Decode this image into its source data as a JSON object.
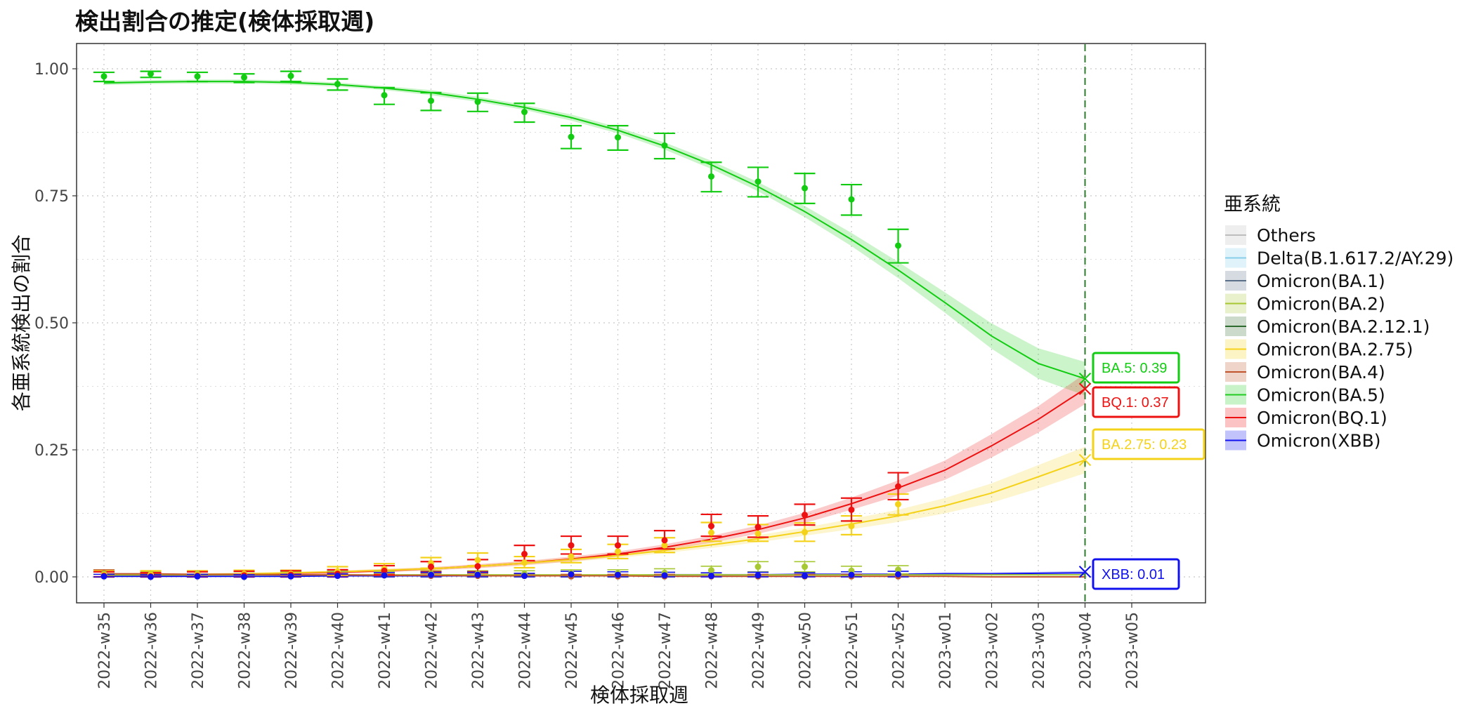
{
  "chart_data": {
    "type": "line",
    "title": "検出割合の推定(検体採取週)",
    "xlabel": "検体採取週",
    "ylabel": "各亜系統検出の割合",
    "ylim": [
      -0.05,
      1.05
    ],
    "y_ticks": [
      "1.00",
      "0.75",
      "0.50",
      "0.25",
      "0.00"
    ],
    "y_tick_values": [
      1.0,
      0.75,
      0.5,
      0.25,
      0.0
    ],
    "categories": [
      "2022-w35",
      "2022-w36",
      "2022-w37",
      "2022-w38",
      "2022-w39",
      "2022-w40",
      "2022-w41",
      "2022-w42",
      "2022-w43",
      "2022-w44",
      "2022-w45",
      "2022-w46",
      "2022-w47",
      "2022-w48",
      "2022-w49",
      "2022-w50",
      "2022-w51",
      "2022-w52",
      "2023-w01",
      "2023-w02",
      "2023-w03",
      "2023-w04",
      "2023-w05"
    ],
    "grid": true,
    "vline_at": "2023-w04",
    "legend": {
      "title": "亜系統",
      "placement": "right",
      "items": [
        {
          "label": "Others",
          "color": "#bdbdbd"
        },
        {
          "label": "Delta(B.1.617.2/AY.29)",
          "color": "#87ceeb"
        },
        {
          "label": "Omicron(BA.1)",
          "color": "#5a7088"
        },
        {
          "label": "Omicron(BA.2)",
          "color": "#a6c832"
        },
        {
          "label": "Omicron(BA.2.12.1)",
          "color": "#2e6b2e"
        },
        {
          "label": "Omicron(BA.2.75)",
          "color": "#f7d21a"
        },
        {
          "label": "Omicron(BA.4)",
          "color": "#c0552d"
        },
        {
          "label": "Omicron(BA.5)",
          "color": "#22cc22"
        },
        {
          "label": "Omicron(BQ.1)",
          "color": "#ee1111"
        },
        {
          "label": "Omicron(XBB)",
          "color": "#1111ee"
        }
      ]
    },
    "series": [
      {
        "name": "Omicron(BA.5)",
        "color": "#11cc11",
        "observed": [
          0.985,
          0.99,
          0.985,
          0.983,
          0.986,
          0.97,
          0.948,
          0.937,
          0.935,
          0.915,
          0.866,
          0.865,
          0.849,
          0.788,
          0.778,
          0.765,
          0.743,
          0.652
        ],
        "err_low": [
          0.975,
          0.983,
          0.975,
          0.973,
          0.975,
          0.958,
          0.93,
          0.918,
          0.916,
          0.895,
          0.843,
          0.84,
          0.823,
          0.758,
          0.748,
          0.735,
          0.712,
          0.618
        ],
        "err_high": [
          0.993,
          0.995,
          0.993,
          0.99,
          0.995,
          0.98,
          0.963,
          0.953,
          0.952,
          0.932,
          0.888,
          0.888,
          0.873,
          0.816,
          0.806,
          0.794,
          0.772,
          0.684
        ],
        "fitted": [
          0.972,
          0.974,
          0.975,
          0.975,
          0.973,
          0.969,
          0.962,
          0.953,
          0.94,
          0.924,
          0.904,
          0.879,
          0.848,
          0.811,
          0.768,
          0.719,
          0.664,
          0.604,
          0.54,
          0.474,
          0.42,
          0.39
        ],
        "band_width": [
          0.004,
          0.004,
          0.004,
          0.004,
          0.004,
          0.004,
          0.004,
          0.005,
          0.005,
          0.005,
          0.006,
          0.006,
          0.007,
          0.008,
          0.009,
          0.011,
          0.013,
          0.016,
          0.02,
          0.025,
          0.03,
          0.033
        ]
      },
      {
        "name": "Omicron(BQ.1)",
        "color": "#ee1111",
        "observed": [
          0.002,
          0.001,
          0.002,
          0.003,
          0.004,
          0.006,
          0.012,
          0.02,
          0.021,
          0.045,
          0.062,
          0.062,
          0.072,
          0.1,
          0.098,
          0.122,
          0.132,
          0.178
        ],
        "err_low": [
          0.0,
          0.0,
          0.0,
          0.0,
          0.0,
          0.0,
          0.004,
          0.01,
          0.01,
          0.032,
          0.045,
          0.045,
          0.055,
          0.08,
          0.078,
          0.102,
          0.11,
          0.152
        ],
        "err_high": [
          0.01,
          0.008,
          0.01,
          0.011,
          0.012,
          0.014,
          0.022,
          0.03,
          0.034,
          0.062,
          0.08,
          0.08,
          0.091,
          0.123,
          0.12,
          0.143,
          0.155,
          0.205
        ],
        "fitted": [
          0.003,
          0.003,
          0.004,
          0.005,
          0.007,
          0.009,
          0.012,
          0.016,
          0.021,
          0.027,
          0.035,
          0.045,
          0.058,
          0.074,
          0.093,
          0.116,
          0.144,
          0.175,
          0.21,
          0.258,
          0.31,
          0.37
        ],
        "band_width": [
          0.002,
          0.002,
          0.002,
          0.002,
          0.002,
          0.003,
          0.003,
          0.003,
          0.004,
          0.004,
          0.005,
          0.005,
          0.006,
          0.007,
          0.008,
          0.01,
          0.012,
          0.015,
          0.019,
          0.023,
          0.026,
          0.03
        ]
      },
      {
        "name": "Omicron(BA.2.75)",
        "color": "#f5d21a",
        "observed": [
          0.004,
          0.004,
          0.004,
          0.006,
          0.006,
          0.011,
          0.016,
          0.027,
          0.033,
          0.028,
          0.04,
          0.05,
          0.062,
          0.087,
          0.085,
          0.088,
          0.1,
          0.143
        ],
        "err_low": [
          0.0,
          0.0,
          0.0,
          0.0,
          0.0,
          0.002,
          0.006,
          0.017,
          0.022,
          0.018,
          0.028,
          0.036,
          0.048,
          0.07,
          0.07,
          0.07,
          0.083,
          0.122
        ],
        "err_high": [
          0.012,
          0.012,
          0.012,
          0.013,
          0.013,
          0.02,
          0.026,
          0.038,
          0.047,
          0.04,
          0.054,
          0.064,
          0.077,
          0.107,
          0.103,
          0.106,
          0.12,
          0.163
        ],
        "fitted": [
          0.003,
          0.004,
          0.005,
          0.006,
          0.008,
          0.01,
          0.013,
          0.016,
          0.021,
          0.027,
          0.034,
          0.042,
          0.052,
          0.063,
          0.075,
          0.089,
          0.104,
          0.12,
          0.14,
          0.165,
          0.197,
          0.23
        ],
        "band_width": [
          0.002,
          0.002,
          0.002,
          0.002,
          0.002,
          0.002,
          0.003,
          0.003,
          0.003,
          0.004,
          0.004,
          0.005,
          0.005,
          0.006,
          0.007,
          0.008,
          0.01,
          0.012,
          0.015,
          0.019,
          0.023,
          0.026
        ]
      },
      {
        "name": "Omicron(XBB)",
        "color": "#1111ee",
        "observed": [
          0.001,
          0.0,
          0.001,
          0.0,
          0.001,
          0.002,
          0.003,
          0.004,
          0.004,
          0.002,
          0.005,
          0.004,
          0.003,
          0.002,
          0.003,
          0.002,
          0.004,
          0.005
        ],
        "err_low": [
          0.0,
          0.0,
          0.0,
          0.0,
          0.0,
          0.0,
          0.0,
          0.0,
          0.0,
          0.0,
          0.0,
          0.0,
          0.0,
          0.0,
          0.0,
          0.0,
          0.0,
          0.0
        ],
        "err_high": [
          0.005,
          0.004,
          0.005,
          0.004,
          0.005,
          0.006,
          0.008,
          0.009,
          0.009,
          0.007,
          0.011,
          0.01,
          0.009,
          0.008,
          0.009,
          0.008,
          0.01,
          0.011
        ],
        "fitted": [
          0.001,
          0.001,
          0.001,
          0.001,
          0.001,
          0.002,
          0.002,
          0.002,
          0.002,
          0.003,
          0.003,
          0.003,
          0.004,
          0.004,
          0.004,
          0.005,
          0.005,
          0.005,
          0.006,
          0.006,
          0.007,
          0.008
        ],
        "band_width": [
          0.001,
          0.001,
          0.001,
          0.001,
          0.001,
          0.001,
          0.001,
          0.001,
          0.001,
          0.001,
          0.001,
          0.001,
          0.002,
          0.002,
          0.002,
          0.002,
          0.002,
          0.002,
          0.003,
          0.003,
          0.003,
          0.004
        ]
      },
      {
        "name": "Omicron(BA.2)",
        "color": "#a6c832",
        "observed": [
          0.006,
          0.005,
          0.006,
          0.004,
          0.004,
          0.005,
          0.005,
          0.006,
          0.006,
          0.006,
          0.007,
          0.007,
          0.008,
          0.013,
          0.02,
          0.02,
          0.012,
          0.014
        ],
        "err_low": [
          0.0,
          0.0,
          0.0,
          0.0,
          0.0,
          0.0,
          0.0,
          0.0,
          0.0,
          0.0,
          0.0,
          0.0,
          0.0,
          0.005,
          0.01,
          0.01,
          0.003,
          0.006
        ],
        "err_high": [
          0.012,
          0.011,
          0.012,
          0.01,
          0.01,
          0.011,
          0.011,
          0.012,
          0.012,
          0.012,
          0.014,
          0.014,
          0.016,
          0.021,
          0.03,
          0.03,
          0.021,
          0.022
        ],
        "fitted": [
          0.004,
          0.004,
          0.004,
          0.004,
          0.004,
          0.004,
          0.004,
          0.004,
          0.004,
          0.004,
          0.004,
          0.004,
          0.004,
          0.004,
          0.004,
          0.004,
          0.004,
          0.004,
          0.004,
          0.004,
          0.004,
          0.004
        ],
        "band_width": [
          0.001,
          0.001,
          0.001,
          0.001,
          0.001,
          0.001,
          0.001,
          0.001,
          0.001,
          0.001,
          0.001,
          0.001,
          0.001,
          0.001,
          0.001,
          0.001,
          0.001,
          0.001,
          0.001,
          0.001,
          0.001,
          0.001
        ]
      },
      {
        "name": "Omicron(BA.4)",
        "color": "#c0552d",
        "observed": [
          0.007,
          0.004,
          0.005,
          0.006,
          0.004,
          0.003,
          0.003,
          0.002,
          0.002,
          0.002,
          0.001,
          0.001,
          0.001,
          0.001,
          0.001,
          0.001,
          0.001,
          0.001
        ],
        "err_low": [
          0.0,
          0.0,
          0.0,
          0.0,
          0.0,
          0.0,
          0.0,
          0.0,
          0.0,
          0.0,
          0.0,
          0.0,
          0.0,
          0.0,
          0.0,
          0.0,
          0.0,
          0.0
        ],
        "err_high": [
          0.014,
          0.01,
          0.012,
          0.012,
          0.01,
          0.009,
          0.008,
          0.007,
          0.007,
          0.006,
          0.005,
          0.005,
          0.005,
          0.005,
          0.005,
          0.005,
          0.005,
          0.005
        ],
        "fitted": [
          0.006,
          0.006,
          0.005,
          0.005,
          0.004,
          0.004,
          0.003,
          0.003,
          0.002,
          0.002,
          0.002,
          0.002,
          0.001,
          0.001,
          0.001,
          0.001,
          0.001,
          0.001,
          0.001,
          0.0,
          0.0,
          0.0
        ],
        "band_width": [
          0.001,
          0.001,
          0.001,
          0.001,
          0.001,
          0.001,
          0.001,
          0.001,
          0.001,
          0.001,
          0.001,
          0.001,
          0.001,
          0.001,
          0.001,
          0.001,
          0.001,
          0.001,
          0.001,
          0.001,
          0.001,
          0.001
        ]
      }
    ],
    "annotations": [
      {
        "text": "BA.5: 0.39",
        "color": "#11cc11",
        "value": 0.39
      },
      {
        "text": "BQ.1: 0.37",
        "color": "#ee1111",
        "value": 0.37
      },
      {
        "text": "BA.2.75: 0.23",
        "color": "#f5d21a",
        "value": 0.23
      },
      {
        "text": "XBB: 0.01",
        "color": "#1111ee",
        "value": 0.01
      }
    ]
  }
}
